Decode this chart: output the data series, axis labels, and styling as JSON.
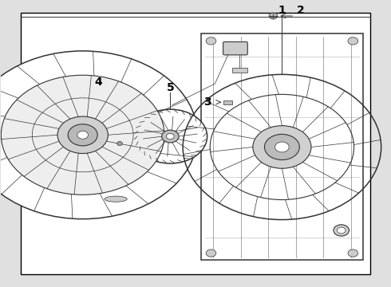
{
  "background_color": "#e0e0e0",
  "border_color": "#000000",
  "line_color": "#333333",
  "label_color": "#000000",
  "fig_width": 4.9,
  "fig_height": 3.6,
  "dpi": 100,
  "label_fontsize": 10,
  "diagram_border": [
    0.05,
    0.04,
    0.95,
    0.96
  ]
}
